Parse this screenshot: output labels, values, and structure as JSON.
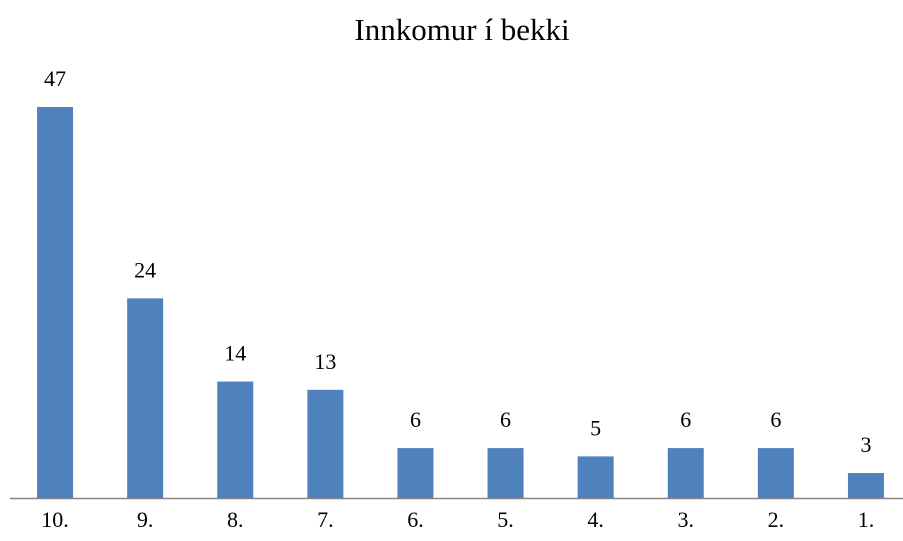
{
  "chart_data": {
    "type": "bar",
    "title": "Innkomur í bekki",
    "categories": [
      "10.",
      "9.",
      "8.",
      "7.",
      "6.",
      "5.",
      "4.",
      "3.",
      "2.",
      "1."
    ],
    "values": [
      47,
      24,
      14,
      13,
      6,
      6,
      5,
      6,
      6,
      3
    ],
    "color": "#4f81bd"
  }
}
